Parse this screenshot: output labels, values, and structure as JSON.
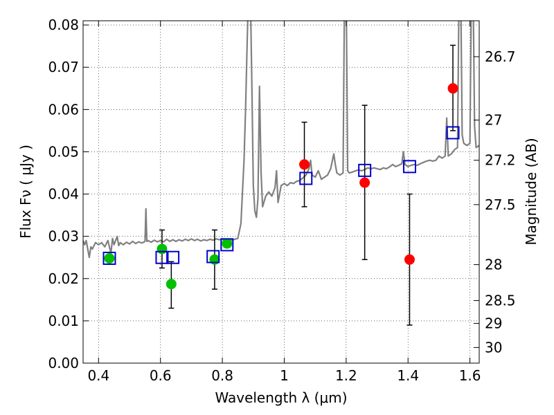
{
  "chart_data": {
    "type": "scatter",
    "xlabel": "Wavelength  λ (μm)",
    "ylabel": "Flux  Fν  ( μJy )",
    "y2label": "Magnitude (AB)",
    "xlim": [
      0.35,
      1.63
    ],
    "ylim": [
      0.0,
      0.081
    ],
    "grid": true,
    "x_ticks": [
      {
        "v": 0.4,
        "label": "0.4"
      },
      {
        "v": 0.6,
        "label": "0.6"
      },
      {
        "v": 0.8,
        "label": "0.8"
      },
      {
        "v": 1.0,
        "label": "1"
      },
      {
        "v": 1.2,
        "label": "1.2"
      },
      {
        "v": 1.4,
        "label": "1.4"
      },
      {
        "v": 1.6,
        "label": "1.6"
      }
    ],
    "y_ticks": [
      {
        "v": 0.0,
        "label": "0.00"
      },
      {
        "v": 0.01,
        "label": "0.01"
      },
      {
        "v": 0.02,
        "label": "0.02"
      },
      {
        "v": 0.03,
        "label": "0.03"
      },
      {
        "v": 0.04,
        "label": "0.04"
      },
      {
        "v": 0.05,
        "label": "0.05"
      },
      {
        "v": 0.06,
        "label": "0.06"
      },
      {
        "v": 0.07,
        "label": "0.07"
      },
      {
        "v": 0.08,
        "label": "0.08"
      }
    ],
    "mag_ticks": [
      {
        "flux": 0.0725,
        "label": "26.7"
      },
      {
        "flux": 0.0575,
        "label": "27"
      },
      {
        "flux": 0.048,
        "label": "27.2"
      },
      {
        "flux": 0.0375,
        "label": "27.5"
      },
      {
        "flux": 0.0233,
        "label": "28"
      },
      {
        "flux": 0.0148,
        "label": "28.5"
      },
      {
        "flux": 0.0094,
        "label": "29"
      },
      {
        "flux": 0.0037,
        "label": "30"
      }
    ],
    "series": [
      {
        "marker": "circle",
        "color": "#00c000",
        "points": [
          {
            "x": 0.435,
            "y": 0.0248
          },
          {
            "x": 0.605,
            "y": 0.027,
            "yerr": [
              0.0225,
              0.0315
            ]
          },
          {
            "x": 0.635,
            "y": 0.0187,
            "yerr": [
              0.013,
              0.024
            ]
          },
          {
            "x": 0.775,
            "y": 0.0245,
            "yerr": [
              0.0175,
              0.0315
            ]
          },
          {
            "x": 0.815,
            "y": 0.0283
          }
        ]
      },
      {
        "marker": "circle",
        "color": "#ff0000",
        "points": [
          {
            "x": 1.065,
            "y": 0.047,
            "yerr": [
              0.037,
              0.057
            ]
          },
          {
            "x": 1.26,
            "y": 0.0427,
            "yerr": [
              0.0245,
              0.061
            ]
          },
          {
            "x": 1.405,
            "y": 0.0245,
            "yerr": [
              0.009,
              0.04
            ]
          },
          {
            "x": 1.545,
            "y": 0.065,
            "yerr": [
              0.055,
              0.0752
            ]
          }
        ]
      },
      {
        "marker": "square",
        "color": "#0000cc",
        "points": [
          {
            "x": 0.435,
            "y": 0.0248
          },
          {
            "x": 0.605,
            "y": 0.025
          },
          {
            "x": 0.64,
            "y": 0.025
          },
          {
            "x": 0.77,
            "y": 0.0252
          },
          {
            "x": 0.815,
            "y": 0.028
          },
          {
            "x": 1.07,
            "y": 0.0437
          },
          {
            "x": 1.26,
            "y": 0.0456
          },
          {
            "x": 1.405,
            "y": 0.0465
          },
          {
            "x": 1.545,
            "y": 0.0545
          }
        ]
      }
    ],
    "model_spectrum": {
      "color": "#808080",
      "points": [
        [
          0.35,
          0.029
        ],
        [
          0.355,
          0.028
        ],
        [
          0.36,
          0.029
        ],
        [
          0.365,
          0.027
        ],
        [
          0.37,
          0.025
        ],
        [
          0.375,
          0.0275
        ],
        [
          0.38,
          0.027
        ],
        [
          0.39,
          0.0285
        ],
        [
          0.4,
          0.028
        ],
        [
          0.41,
          0.0285
        ],
        [
          0.42,
          0.0275
        ],
        [
          0.43,
          0.029
        ],
        [
          0.44,
          0.026
        ],
        [
          0.445,
          0.0295
        ],
        [
          0.45,
          0.028
        ],
        [
          0.46,
          0.03
        ],
        [
          0.465,
          0.0278
        ],
        [
          0.47,
          0.0285
        ],
        [
          0.48,
          0.028
        ],
        [
          0.49,
          0.0286
        ],
        [
          0.5,
          0.0282
        ],
        [
          0.51,
          0.0288
        ],
        [
          0.52,
          0.0283
        ],
        [
          0.53,
          0.0287
        ],
        [
          0.54,
          0.0284
        ],
        [
          0.55,
          0.0288
        ],
        [
          0.553,
          0.0365
        ],
        [
          0.556,
          0.0288
        ],
        [
          0.56,
          0.029
        ],
        [
          0.57,
          0.0286
        ],
        [
          0.58,
          0.0291
        ],
        [
          0.59,
          0.0287
        ],
        [
          0.6,
          0.029
        ],
        [
          0.61,
          0.0287
        ],
        [
          0.62,
          0.0293
        ],
        [
          0.63,
          0.0288
        ],
        [
          0.64,
          0.0292
        ],
        [
          0.65,
          0.0288
        ],
        [
          0.66,
          0.0292
        ],
        [
          0.67,
          0.0289
        ],
        [
          0.68,
          0.0293
        ],
        [
          0.69,
          0.029
        ],
        [
          0.7,
          0.0294
        ],
        [
          0.71,
          0.029
        ],
        [
          0.72,
          0.0293
        ],
        [
          0.73,
          0.0289
        ],
        [
          0.74,
          0.0292
        ],
        [
          0.75,
          0.029
        ],
        [
          0.76,
          0.0293
        ],
        [
          0.77,
          0.0291
        ],
        [
          0.78,
          0.0294
        ],
        [
          0.79,
          0.0292
        ],
        [
          0.8,
          0.0293
        ],
        [
          0.81,
          0.029
        ],
        [
          0.82,
          0.0293
        ],
        [
          0.83,
          0.0291
        ],
        [
          0.84,
          0.0293
        ],
        [
          0.85,
          0.0295
        ],
        [
          0.86,
          0.033
        ],
        [
          0.87,
          0.048
        ],
        [
          0.875,
          0.06
        ],
        [
          0.88,
          0.075
        ],
        [
          0.885,
          0.09
        ],
        [
          0.89,
          0.09
        ],
        [
          0.895,
          0.068
        ],
        [
          0.9,
          0.042
        ],
        [
          0.905,
          0.036
        ],
        [
          0.91,
          0.0345
        ],
        [
          0.915,
          0.039
        ],
        [
          0.92,
          0.0655
        ],
        [
          0.925,
          0.045
        ],
        [
          0.93,
          0.037
        ],
        [
          0.94,
          0.0395
        ],
        [
          0.95,
          0.0405
        ],
        [
          0.96,
          0.0395
        ],
        [
          0.97,
          0.0415
        ],
        [
          0.975,
          0.0455
        ],
        [
          0.98,
          0.038
        ],
        [
          0.99,
          0.042
        ],
        [
          1.0,
          0.0425
        ],
        [
          1.01,
          0.042
        ],
        [
          1.02,
          0.0427
        ],
        [
          1.03,
          0.0425
        ],
        [
          1.04,
          0.043
        ],
        [
          1.05,
          0.0432
        ],
        [
          1.06,
          0.0438
        ],
        [
          1.07,
          0.0445
        ],
        [
          1.08,
          0.046
        ],
        [
          1.085,
          0.048
        ],
        [
          1.09,
          0.0445
        ],
        [
          1.1,
          0.044
        ],
        [
          1.11,
          0.0455
        ],
        [
          1.12,
          0.0435
        ],
        [
          1.13,
          0.044
        ],
        [
          1.14,
          0.0445
        ],
        [
          1.15,
          0.046
        ],
        [
          1.16,
          0.0495
        ],
        [
          1.165,
          0.047
        ],
        [
          1.17,
          0.045
        ],
        [
          1.18,
          0.0445
        ],
        [
          1.19,
          0.045
        ],
        [
          1.195,
          0.09
        ],
        [
          1.2,
          0.09
        ],
        [
          1.205,
          0.0455
        ],
        [
          1.21,
          0.045
        ],
        [
          1.22,
          0.0452
        ],
        [
          1.23,
          0.0455
        ],
        [
          1.24,
          0.0457
        ],
        [
          1.25,
          0.0455
        ],
        [
          1.26,
          0.0458
        ],
        [
          1.27,
          0.0462
        ],
        [
          1.28,
          0.046
        ],
        [
          1.29,
          0.0462
        ],
        [
          1.3,
          0.046
        ],
        [
          1.31,
          0.0458
        ],
        [
          1.32,
          0.0462
        ],
        [
          1.33,
          0.046
        ],
        [
          1.34,
          0.0464
        ],
        [
          1.35,
          0.047
        ],
        [
          1.36,
          0.0465
        ],
        [
          1.37,
          0.0468
        ],
        [
          1.38,
          0.0472
        ],
        [
          1.385,
          0.05
        ],
        [
          1.39,
          0.047
        ],
        [
          1.4,
          0.0465
        ],
        [
          1.41,
          0.0468
        ],
        [
          1.42,
          0.047
        ],
        [
          1.43,
          0.0468
        ],
        [
          1.44,
          0.0472
        ],
        [
          1.45,
          0.0475
        ],
        [
          1.46,
          0.0478
        ],
        [
          1.47,
          0.048
        ],
        [
          1.48,
          0.0478
        ],
        [
          1.49,
          0.048
        ],
        [
          1.5,
          0.049
        ],
        [
          1.51,
          0.0485
        ],
        [
          1.52,
          0.049
        ],
        [
          1.525,
          0.058
        ],
        [
          1.53,
          0.049
        ],
        [
          1.54,
          0.0495
        ],
        [
          1.55,
          0.0505
        ],
        [
          1.56,
          0.051
        ],
        [
          1.565,
          0.09
        ],
        [
          1.57,
          0.09
        ],
        [
          1.575,
          0.054
        ],
        [
          1.58,
          0.052
        ],
        [
          1.59,
          0.0515
        ],
        [
          1.6,
          0.052
        ],
        [
          1.605,
          0.09
        ],
        [
          1.61,
          0.09
        ],
        [
          1.615,
          0.056
        ],
        [
          1.62,
          0.051
        ],
        [
          1.63,
          0.0515
        ]
      ]
    }
  }
}
